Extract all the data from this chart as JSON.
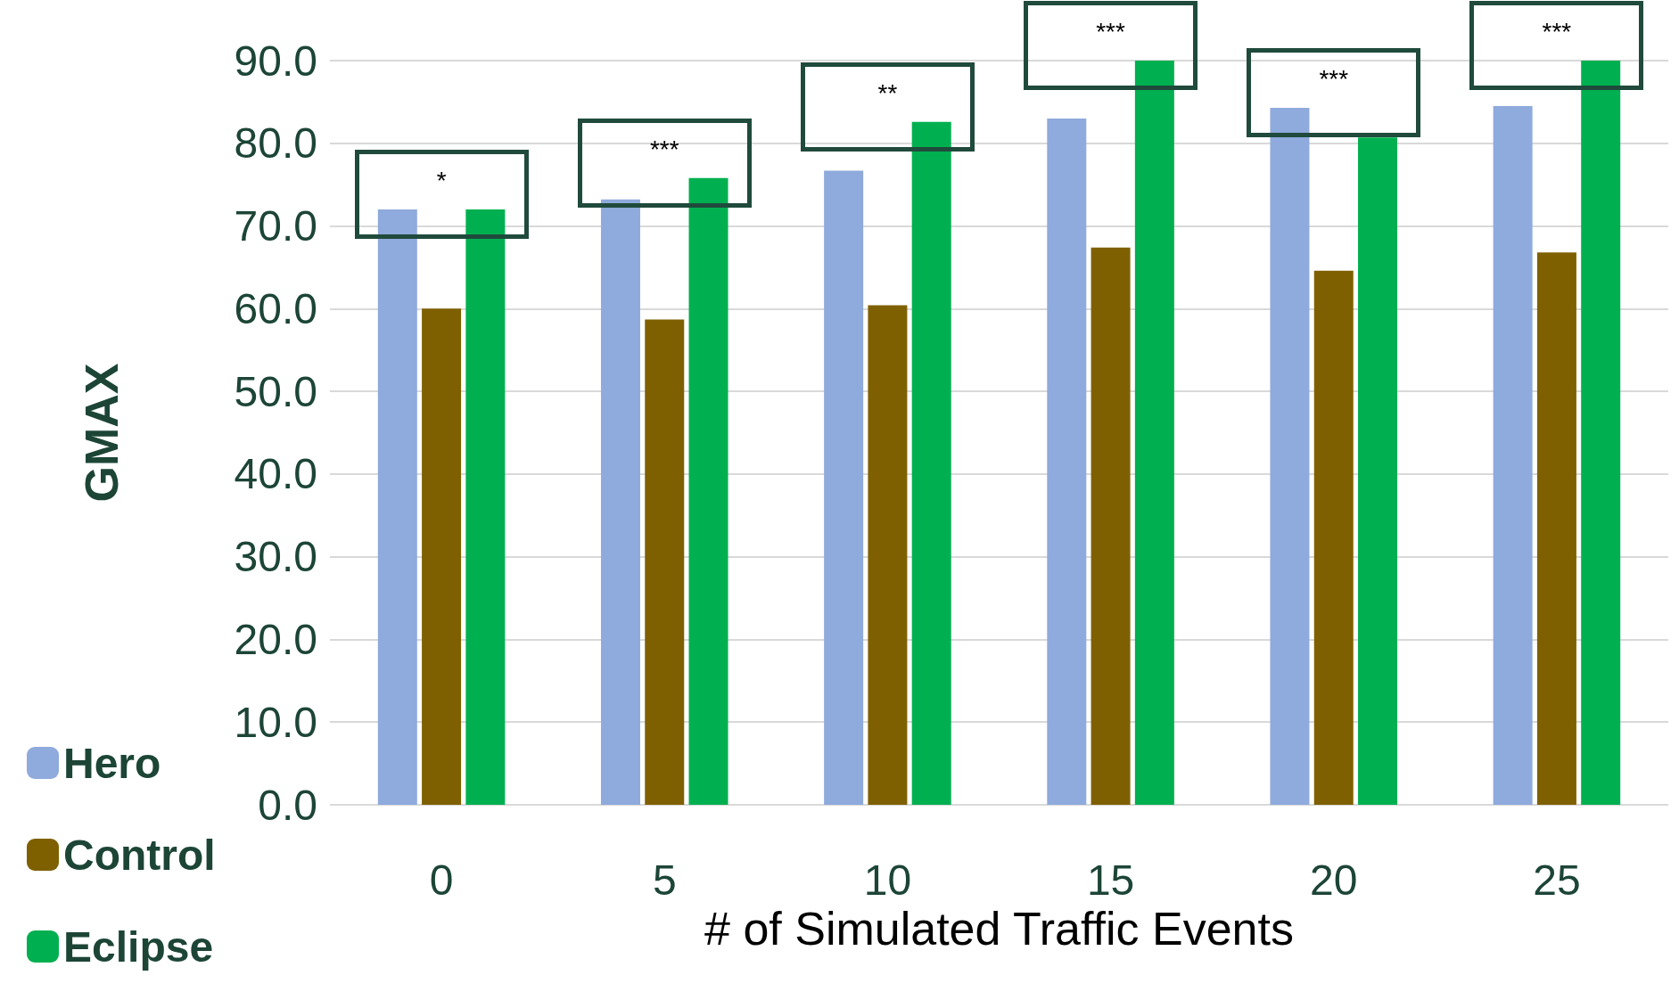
{
  "chart_data": {
    "type": "bar",
    "xlabel": "# of Simulated Traffic Events",
    "ylabel": "GMAX",
    "categories": [
      "0",
      "5",
      "10",
      "15",
      "20",
      "25"
    ],
    "series": [
      {
        "name": "Hero",
        "color": "#8faadc",
        "values": [
          72.0,
          73.2,
          76.7,
          83.0,
          84.3,
          84.5
        ]
      },
      {
        "name": "Control",
        "color": "#7f6000",
        "values": [
          60.0,
          58.7,
          60.4,
          67.4,
          64.6,
          66.8
        ]
      },
      {
        "name": "Eclipse",
        "color": "#00b050",
        "values": [
          72.0,
          75.8,
          82.6,
          90.0,
          80.7,
          90.0
        ]
      }
    ],
    "ylim": [
      0,
      90
    ],
    "yticks": [
      {
        "value": 0,
        "label": "0.0"
      },
      {
        "value": 10,
        "label": "10.0"
      },
      {
        "value": 20,
        "label": "20.0"
      },
      {
        "value": 30,
        "label": "30.0"
      },
      {
        "value": 40,
        "label": "40.0"
      },
      {
        "value": 50,
        "label": "50.0"
      },
      {
        "value": 60,
        "label": "60.0"
      },
      {
        "value": 70,
        "label": "70.0"
      },
      {
        "value": 80,
        "label": "80.0"
      },
      {
        "value": 90,
        "label": "90.0"
      }
    ],
    "grid": "y",
    "legend": "bottom left",
    "annotations": [
      "*",
      "***",
      "**",
      "***",
      "***",
      "***"
    ]
  }
}
